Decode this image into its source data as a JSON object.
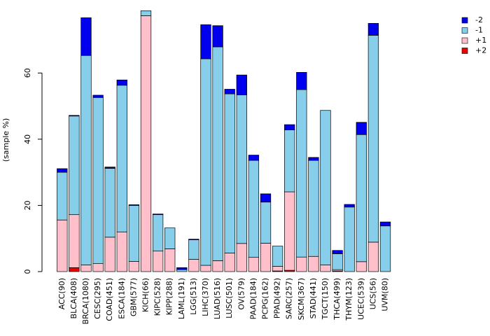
{
  "chart_data": {
    "type": "bar",
    "stacked": true,
    "title": "",
    "xlabel": "",
    "ylabel": "(sample %)",
    "ylim": [
      0,
      80
    ],
    "yticks": [
      0,
      20,
      40,
      60
    ],
    "categories": [
      "ACC(90)",
      "BLCA(408)",
      "BRCA(1080)",
      "CESC(295)",
      "COAD(451)",
      "ESCA(184)",
      "GBM(577)",
      "KICH(66)",
      "KIPC(528)",
      "KIPP(288)",
      "LAML(191)",
      "LGG(513)",
      "LIHC(370)",
      "LUAD(516)",
      "LUSC(501)",
      "OV(579)",
      "PAAD(184)",
      "PCPG(162)",
      "PPAD(492)",
      "SARC(257)",
      "SKCM(367)",
      "STAD(441)",
      "TGCT(150)",
      "THCA(499)",
      "THYM(123)",
      "UCEC(539)",
      "UCS(56)",
      "UVM(80)"
    ],
    "series": [
      {
        "name": "+2",
        "color": "#ee0000",
        "values": [
          0,
          1.2,
          0,
          0,
          0,
          0,
          0,
          0,
          0,
          0,
          0,
          0,
          0,
          0,
          0,
          0,
          0,
          0,
          0.2,
          0.4,
          0,
          0,
          0,
          0.2,
          0,
          0,
          0,
          0
        ]
      },
      {
        "name": "+1",
        "color": "#ffc0cb",
        "values": [
          15.6,
          16.0,
          2.0,
          2.4,
          10.4,
          12.0,
          3.1,
          77.3,
          6.2,
          6.9,
          0,
          3.7,
          1.9,
          3.3,
          5.6,
          8.5,
          4.3,
          8.6,
          1.4,
          23.7,
          4.4,
          4.6,
          2.0,
          0.4,
          0,
          3.0,
          8.9,
          0
        ]
      },
      {
        "name": "-1",
        "color": "#87ceeb",
        "values": [
          14.4,
          29.8,
          63.3,
          50.2,
          20.8,
          44.3,
          16.9,
          1.5,
          11.0,
          6.3,
          0.6,
          5.9,
          62.4,
          64.6,
          48.1,
          44.9,
          29.3,
          12.4,
          6.1,
          18.7,
          50.6,
          29.0,
          46.7,
          4.8,
          19.5,
          38.4,
          62.5,
          13.8
        ]
      },
      {
        "name": "-2",
        "color": "#0000ee",
        "values": [
          1.1,
          0.2,
          11.4,
          0.7,
          0.4,
          1.6,
          0.2,
          0,
          0.2,
          0,
          0.6,
          0.2,
          10.3,
          6.4,
          1.4,
          6.0,
          1.6,
          2.5,
          0,
          1.6,
          5.2,
          0.9,
          0,
          1.0,
          0.8,
          3.7,
          3.6,
          1.2
        ]
      }
    ],
    "legend": {
      "position": "top-right",
      "order": [
        "-2",
        "-1",
        "+1",
        "+2"
      ]
    }
  }
}
